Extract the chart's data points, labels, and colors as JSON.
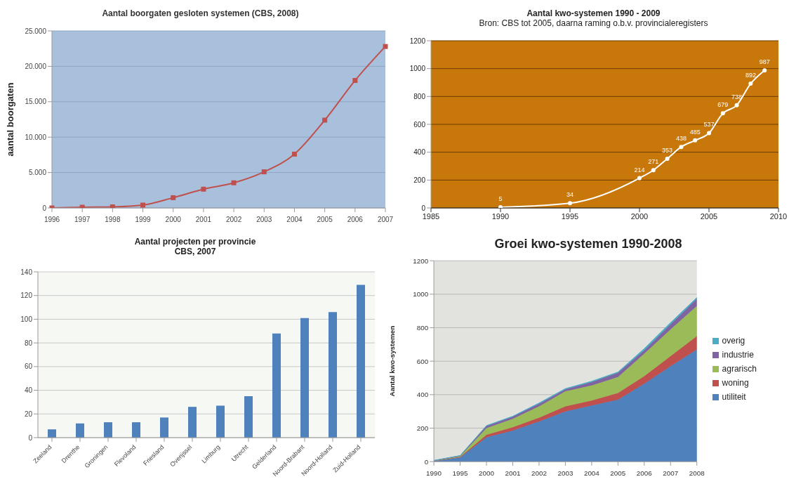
{
  "chart_data": [
    {
      "type": "line",
      "title": "Aantal boorgaten gesloten systemen (CBS, 2008)",
      "ylabel": "aantal boorgaten",
      "categories": [
        "1996",
        "1997",
        "1998",
        "1999",
        "2000",
        "2001",
        "2002",
        "2003",
        "2004",
        "2005",
        "2006",
        "2007"
      ],
      "series": [
        {
          "color": "#c0504d",
          "values": [
            0,
            100,
            150,
            400,
            1450,
            2650,
            3550,
            5100,
            7600,
            12400,
            18000,
            22800
          ]
        }
      ],
      "ylim": [
        0,
        25000
      ],
      "yticks": [
        0,
        {
          "value": 5000,
          "label": "5.000"
        },
        {
          "value": 10000,
          "label": "10.000"
        },
        {
          "value": 15000,
          "label": "15.000"
        },
        {
          "value": 20000,
          "label": "20.000"
        },
        {
          "value": 25000,
          "label": "25.000"
        }
      ],
      "grid": "y",
      "marker": "square"
    },
    {
      "type": "line",
      "title": "Aantal kwo-systemen 1990 - 2009",
      "subtitle": "Bron: CBS tot 2005, daarna raming o.b.v. provincialeregisters",
      "x": [
        1990,
        1995,
        2000,
        2001,
        2002,
        2003,
        2004,
        2005,
        2006,
        2007,
        2008,
        2009
      ],
      "series": [
        {
          "color": "#ffffff",
          "values": [
            5,
            34,
            214,
            271,
            353,
            438,
            485,
            537,
            679,
            738,
            892,
            987
          ],
          "value_labels": [
            "5",
            "34",
            "214",
            "271",
            "353",
            "438",
            "485",
            "537",
            "679",
            "738",
            "892",
            "987"
          ]
        }
      ],
      "xlim": [
        1985,
        2010
      ],
      "xticks": [
        1985,
        1990,
        1995,
        2000,
        2005,
        2010
      ],
      "ylim": [
        0,
        1200
      ],
      "yticks": [
        0,
        200,
        400,
        600,
        800,
        1000,
        1200
      ],
      "grid": "y",
      "marker": "circle"
    },
    {
      "type": "bar",
      "title": "Aantal projecten per provincie\nCBS, 2007",
      "categories": [
        "Zeeland",
        "Drenthe",
        "Groningen",
        "Flevoland",
        "Friesland",
        "Overijssel",
        "Limburg",
        "Utrecht",
        "Gelderland",
        "Noord-Brabant",
        "Noord-Holland",
        "Zuid-Holland"
      ],
      "series": [
        {
          "color": "#4f81bd",
          "values": [
            7,
            12,
            13,
            13,
            17,
            26,
            27,
            35,
            88,
            101,
            106,
            129
          ]
        }
      ],
      "ylim": [
        0,
        140
      ],
      "yticks": [
        0,
        20,
        40,
        60,
        80,
        100,
        120,
        140
      ],
      "grid": "y"
    },
    {
      "type": "area",
      "title": "Groei kwo-systemen 1990-2008",
      "ylabel": "Aantal kwo-systemen",
      "categories": [
        "1990",
        "1995",
        "2000",
        "2001",
        "2002",
        "2003",
        "2004",
        "2005",
        "2006",
        "2007",
        "2008"
      ],
      "stacked": true,
      "series": [
        {
          "name": "utiliteit",
          "color": "#4f81bd",
          "values": [
            3,
            25,
            145,
            185,
            240,
            300,
            335,
            370,
            465,
            570,
            670
          ]
        },
        {
          "name": "woning",
          "color": "#c0504d",
          "values": [
            1,
            3,
            15,
            20,
            22,
            30,
            30,
            40,
            45,
            60,
            80
          ]
        },
        {
          "name": "agrarisch",
          "color": "#9bbb59",
          "values": [
            1,
            4,
            40,
            50,
            68,
            90,
            90,
            95,
            135,
            160,
            180
          ]
        },
        {
          "name": "industrie",
          "color": "#8064a2",
          "values": [
            1,
            3,
            12,
            13,
            15,
            12,
            20,
            25,
            20,
            30,
            42
          ]
        },
        {
          "name": "overig",
          "color": "#4bacc6",
          "values": [
            1,
            1,
            3,
            3,
            5,
            4,
            5,
            5,
            10,
            10,
            8
          ]
        }
      ],
      "ylim": [
        0,
        1200
      ],
      "yticks": [
        0,
        200,
        400,
        600,
        800,
        1000,
        1200
      ],
      "grid": "y",
      "legend": "right"
    }
  ]
}
